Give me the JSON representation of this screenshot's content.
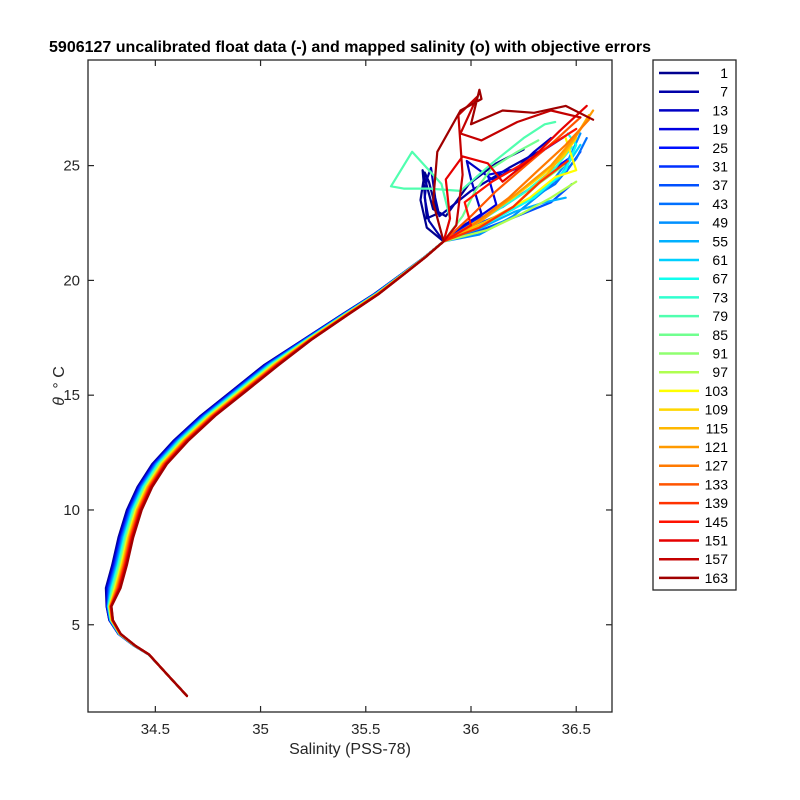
{
  "chart_data": {
    "type": "line",
    "title": "5906127 uncalibrated float data (-) and mapped salinity (o) with objective errors",
    "xlabel": "Salinity (PSS-78)",
    "ylabel_symbol": "θ",
    "ylabel_unit": "° C",
    "xlim": [
      34.18,
      36.67
    ],
    "ylim": [
      1.2,
      29.6
    ],
    "xticks": [
      34.5,
      35,
      35.5,
      36,
      36.5
    ],
    "xtick_labels": [
      "34.5",
      "35",
      "35.5",
      "36",
      "36.5"
    ],
    "yticks": [
      5,
      10,
      15,
      20,
      25
    ],
    "ytick_labels": [
      "5",
      "10",
      "15",
      "20",
      "25"
    ],
    "grid": false,
    "legend_position": "outside-right",
    "base_profile": {
      "x": [
        34.65,
        34.62,
        34.57,
        34.52,
        34.47,
        34.4,
        34.33,
        34.29,
        34.28,
        34.3,
        34.33,
        34.36,
        34.4,
        34.45,
        34.52,
        34.62,
        34.75,
        34.9,
        35.05,
        35.22,
        35.4,
        35.55,
        35.68,
        35.78,
        35.87
      ],
      "y": [
        1.9,
        2.2,
        2.7,
        3.2,
        3.7,
        4.1,
        4.6,
        5.2,
        5.8,
        6.6,
        7.6,
        8.8,
        10.0,
        11.0,
        12.0,
        13.0,
        14.1,
        15.2,
        16.3,
        17.4,
        18.5,
        19.4,
        20.3,
        21.0,
        21.7
      ]
    },
    "series": [
      {
        "name": "1",
        "color": "#00008F",
        "top": {
          "x": [
            35.87,
            35.79,
            35.76,
            35.78,
            35.8,
            35.84,
            35.79,
            35.77,
            35.82,
            35.88,
            35.99,
            36.12,
            36.25
          ],
          "y": [
            21.7,
            22.3,
            23.5,
            24.7,
            24.3,
            22.9,
            22.7,
            24.8,
            23.1,
            22.8,
            24.2,
            25.1,
            25.7
          ]
        }
      },
      {
        "name": "7",
        "color": "#0000A8",
        "top": {
          "x": [
            35.87,
            35.8,
            35.78,
            35.79,
            35.81,
            35.83,
            35.85,
            36.0,
            36.18,
            36.32
          ],
          "y": [
            21.7,
            22.6,
            23.6,
            24.4,
            24.9,
            23.6,
            22.8,
            23.9,
            24.9,
            25.6
          ]
        }
      },
      {
        "name": "13",
        "color": "#0000C4",
        "top": {
          "x": [
            35.87,
            35.95,
            36.05,
            36.0,
            35.98,
            36.1,
            36.22,
            36.3,
            36.38
          ],
          "y": [
            21.7,
            22.3,
            22.9,
            24.4,
            25.2,
            24.4,
            24.9,
            25.6,
            26.2
          ]
        }
      },
      {
        "name": "19",
        "color": "#0000E0",
        "top": {
          "x": [
            35.87,
            35.98,
            36.12,
            36.08,
            36.24,
            36.35,
            36.45
          ],
          "y": [
            21.7,
            22.4,
            23.3,
            24.6,
            24.9,
            25.7,
            26.3
          ]
        }
      },
      {
        "name": "25",
        "color": "#0010FF",
        "top": {
          "x": [
            35.87,
            36.0,
            36.15,
            36.28,
            36.4,
            36.48
          ],
          "y": [
            21.7,
            22.5,
            23.2,
            24.0,
            24.9,
            25.4
          ]
        }
      },
      {
        "name": "31",
        "color": "#0030FF",
        "top": {
          "x": [
            35.87,
            36.02,
            36.2,
            36.34,
            36.45,
            36.52
          ],
          "y": [
            21.7,
            22.4,
            23.1,
            23.9,
            24.7,
            25.6
          ]
        }
      },
      {
        "name": "37",
        "color": "#0050FF",
        "top": {
          "x": [
            35.87,
            36.05,
            36.22,
            36.38,
            36.48
          ],
          "y": [
            21.7,
            22.2,
            22.8,
            23.4,
            24.2
          ]
        }
      },
      {
        "name": "43",
        "color": "#0070FF",
        "top": {
          "x": [
            35.87,
            36.06,
            36.24,
            36.4,
            36.5,
            36.55
          ],
          "y": [
            21.7,
            22.5,
            23.3,
            24.2,
            25.3,
            26.2
          ]
        }
      },
      {
        "name": "49",
        "color": "#0090FF",
        "top": {
          "x": [
            35.87,
            36.04,
            36.2,
            36.36,
            36.46,
            36.52
          ],
          "y": [
            21.7,
            22.0,
            22.8,
            24.0,
            25.2,
            26.4
          ]
        }
      },
      {
        "name": "55",
        "color": "#00B0FF",
        "top": {
          "x": [
            35.87,
            36.05,
            36.21,
            36.35,
            36.45
          ],
          "y": [
            21.7,
            22.3,
            23.0,
            23.4,
            23.6
          ]
        }
      },
      {
        "name": "61",
        "color": "#00D0FF",
        "top": {
          "x": [
            35.87,
            36.08,
            36.26,
            36.42,
            36.52
          ],
          "y": [
            21.7,
            22.6,
            23.4,
            24.5,
            25.9
          ]
        }
      },
      {
        "name": "67",
        "color": "#10FFEF",
        "top": {
          "x": [
            35.87,
            36.1,
            36.3,
            36.45,
            36.5,
            36.46
          ],
          "y": [
            21.7,
            22.6,
            23.6,
            24.8,
            25.9,
            26.4
          ]
        }
      },
      {
        "name": "73",
        "color": "#30FFCF",
        "top": {
          "x": [
            35.87,
            36.08,
            36.25,
            36.4,
            36.48
          ],
          "y": [
            21.7,
            22.8,
            23.8,
            24.9,
            25.8
          ]
        }
      },
      {
        "name": "79",
        "color": "#50FFAF",
        "top": {
          "x": [
            35.87,
            35.9,
            35.86,
            35.72,
            35.62,
            35.68,
            35.8,
            35.95,
            36.1,
            36.25,
            36.35,
            36.4
          ],
          "y": [
            21.7,
            22.7,
            24.2,
            25.6,
            24.1,
            24.0,
            24.0,
            23.9,
            25.1,
            26.2,
            26.8,
            26.9
          ]
        }
      },
      {
        "name": "85",
        "color": "#70FF8F",
        "top": {
          "x": [
            35.87,
            35.96,
            36.02,
            36.1,
            36.22,
            36.32
          ],
          "y": [
            21.7,
            22.8,
            23.9,
            24.9,
            25.6,
            26.1
          ]
        }
      },
      {
        "name": "91",
        "color": "#8FFF70",
        "top": {
          "x": [
            35.87,
            36.05,
            36.2,
            36.32,
            36.44
          ],
          "y": [
            21.7,
            22.4,
            23.2,
            24.2,
            25.0
          ]
        }
      },
      {
        "name": "97",
        "color": "#AFFF50",
        "top": {
          "x": [
            35.87,
            36.08,
            36.24,
            36.38,
            36.5
          ],
          "y": [
            21.7,
            22.2,
            22.9,
            23.6,
            24.3
          ]
        }
      },
      {
        "name": "103",
        "color": "#FFFF00",
        "top": {
          "x": [
            35.87,
            36.08,
            36.28,
            36.4,
            36.5,
            36.45
          ],
          "y": [
            21.7,
            22.6,
            23.6,
            24.5,
            24.8,
            26.2
          ]
        }
      },
      {
        "name": "109",
        "color": "#FFD700",
        "top": {
          "x": [
            35.87,
            36.05,
            36.2,
            36.34,
            36.44,
            36.5
          ],
          "y": [
            21.7,
            22.7,
            23.6,
            24.6,
            25.4,
            26.2
          ]
        }
      },
      {
        "name": "115",
        "color": "#FFB800",
        "top": {
          "x": [
            35.87,
            36.04,
            36.2,
            36.36,
            36.48,
            36.56
          ],
          "y": [
            21.7,
            22.4,
            23.2,
            24.6,
            26.0,
            27.2
          ]
        }
      },
      {
        "name": "121",
        "color": "#FF9A00",
        "top": {
          "x": [
            35.87,
            36.05,
            36.22,
            36.38,
            36.5,
            36.58
          ],
          "y": [
            21.7,
            22.6,
            23.8,
            25.0,
            26.3,
            27.4
          ]
        }
      },
      {
        "name": "127",
        "color": "#FF7A00",
        "top": {
          "x": [
            35.87,
            36.02,
            36.18,
            36.32,
            36.45,
            36.56
          ],
          "y": [
            21.7,
            22.5,
            23.6,
            24.8,
            25.9,
            27.0
          ]
        }
      },
      {
        "name": "133",
        "color": "#FF5500",
        "top": {
          "x": [
            35.87,
            36.0,
            36.12,
            36.26,
            36.4,
            36.52
          ],
          "y": [
            21.7,
            22.8,
            23.9,
            25.0,
            26.1,
            27.1
          ]
        }
      },
      {
        "name": "139",
        "color": "#FF3300",
        "top": {
          "x": [
            35.87,
            36.04,
            36.2,
            36.33,
            36.46
          ],
          "y": [
            21.7,
            22.3,
            23.2,
            24.3,
            25.2
          ]
        }
      },
      {
        "name": "145",
        "color": "#FF1100",
        "top": {
          "x": [
            35.87,
            36.0,
            35.97,
            36.1,
            36.25,
            36.38,
            36.5
          ],
          "y": [
            21.7,
            22.4,
            23.4,
            24.3,
            25.1,
            25.9,
            26.6
          ]
        }
      },
      {
        "name": "151",
        "color": "#E60000",
        "top": {
          "x": [
            35.87,
            35.9,
            35.88,
            35.96,
            36.08,
            36.15,
            36.3,
            36.42,
            36.55
          ],
          "y": [
            21.7,
            22.7,
            24.4,
            25.4,
            25.1,
            24.3,
            25.4,
            26.5,
            27.6
          ]
        }
      },
      {
        "name": "157",
        "color": "#C40000",
        "top": {
          "x": [
            35.87,
            35.93,
            35.96,
            35.94,
            36.03,
            35.95,
            36.05,
            36.22,
            36.38,
            36.52
          ],
          "y": [
            21.7,
            22.4,
            24.6,
            27.2,
            28.0,
            26.4,
            26.1,
            26.9,
            27.4,
            27.1
          ]
        }
      },
      {
        "name": "163",
        "color": "#A00000",
        "top": {
          "x": [
            35.87,
            35.82,
            35.84,
            35.95,
            36.05,
            36.04,
            36.0,
            36.15,
            36.3,
            36.45,
            36.58
          ],
          "y": [
            21.7,
            23.4,
            25.6,
            27.4,
            27.9,
            28.3,
            26.8,
            27.4,
            27.3,
            27.6,
            27.0
          ]
        }
      }
    ]
  }
}
